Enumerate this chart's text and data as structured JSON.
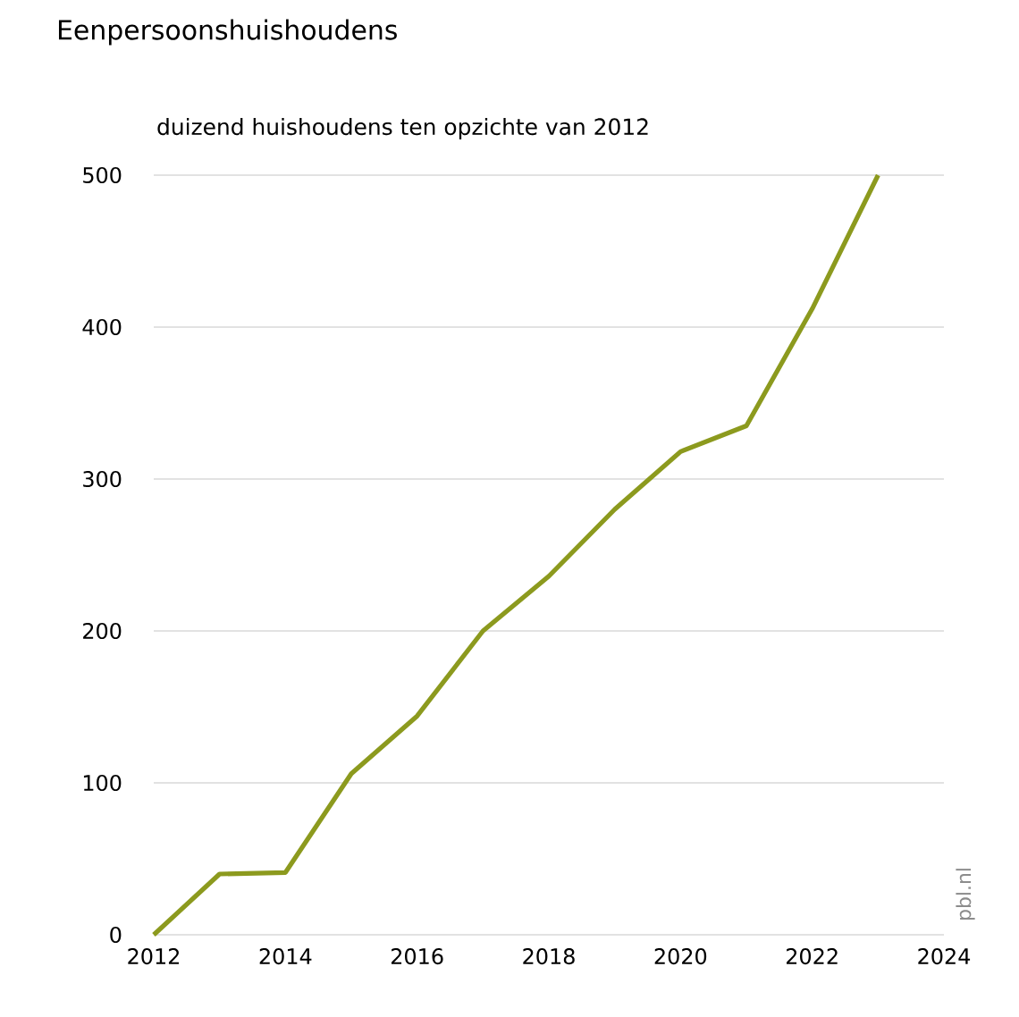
{
  "chart_data": {
    "type": "line",
    "title": "Eenpersoonshuishoudens",
    "subtitle": "duizend huishoudens ten opzichte van 2012",
    "x": [
      2012,
      2013,
      2014,
      2015,
      2016,
      2017,
      2018,
      2019,
      2020,
      2021,
      2022,
      2023
    ],
    "series": [
      {
        "color": "#8c9a1e",
        "values": [
          0,
          40,
          41,
          106,
          144,
          200,
          236,
          280,
          318,
          335,
          412,
          500
        ]
      }
    ],
    "xlim": [
      2012,
      2024
    ],
    "xticks": [
      2012,
      2014,
      2016,
      2018,
      2020,
      2022,
      2024
    ],
    "ylim": [
      0,
      500
    ],
    "yticks": [
      0,
      100,
      200,
      300,
      400,
      500
    ],
    "grid": "y",
    "marker": "none",
    "line_style": "solid",
    "annotations": [
      "pbl.nl"
    ]
  }
}
